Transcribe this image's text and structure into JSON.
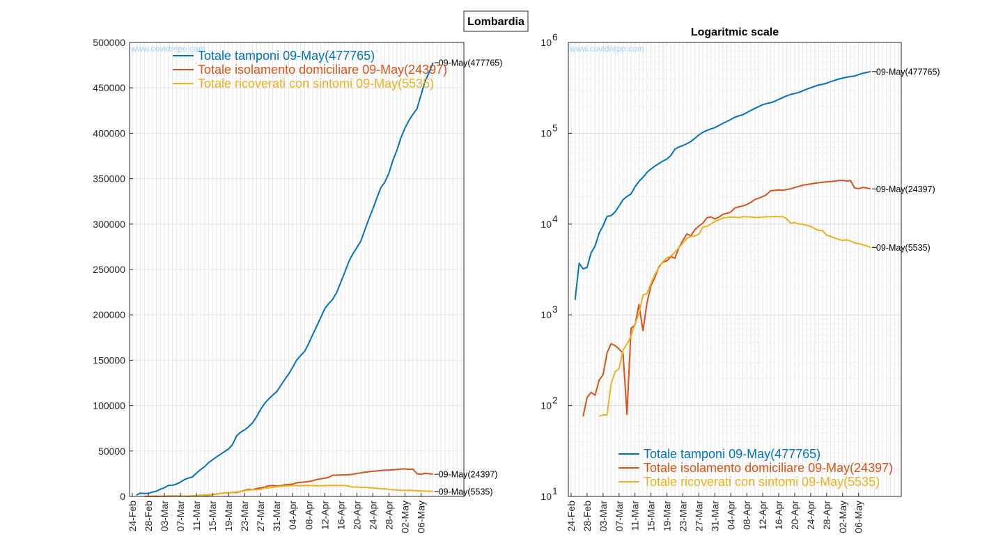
{
  "figure": {
    "region_title": "Lombardia",
    "watermark": "www.covidrepo.com"
  },
  "chart_data": [
    {
      "type": "line",
      "title": "",
      "xlabel": "",
      "ylabel": "",
      "yscale": "linear",
      "ylim": [
        0,
        500000
      ],
      "yticks": [
        0,
        50000,
        100000,
        150000,
        200000,
        250000,
        300000,
        350000,
        400000,
        450000,
        500000
      ],
      "ytick_labels": [
        "0",
        "50000",
        "100000",
        "150000",
        "200000",
        "250000",
        "300000",
        "350000",
        "400000",
        "450000",
        "500000"
      ],
      "grid": true,
      "legend_position": "top",
      "x_start": "24-Feb",
      "x_end": "09-May",
      "xtick_labels": [
        "24-Feb",
        "28-Feb",
        "03-Mar",
        "07-Mar",
        "11-Mar",
        "15-Mar",
        "19-Mar",
        "23-Mar",
        "27-Mar",
        "31-Mar",
        "04-Apr",
        "08-Apr",
        "12-Apr",
        "16-Apr",
        "20-Apr",
        "24-Apr",
        "28-Apr",
        "02-May",
        "06-May"
      ],
      "series": [
        {
          "name": "Totale tamponi 09-May(477765)",
          "color": "#0072BD",
          "end_label": "09-May(477765)",
          "values": [
            1463,
            3700,
            3208,
            3320,
            4835,
            5723,
            7925,
            9577,
            12138,
            12354,
            13556,
            15778,
            18534,
            20135,
            21479,
            25629,
            29534,
            32700,
            37138,
            40369,
            43565,
            46449,
            49354,
            52244,
            57174,
            66730,
            70598,
            73242,
            76695,
            81324,
            87713,
            95860,
            102503,
            107398,
            111477,
            115375,
            121962,
            128601,
            134844,
            142208,
            150138,
            155289,
            160029,
            168590,
            178271,
            187585,
            196988,
            206754,
            212523,
            217163,
            224856,
            235930,
            247181,
            258633,
            267170,
            274036,
            281214,
            293818,
            305638,
            316729,
            328734,
            340152,
            346389,
            356041,
            370268,
            381470,
            395138,
            405697,
            414225,
            420999,
            426993,
            442098,
            457106,
            466802,
            477765
          ]
        },
        {
          "name": "Totale isolamento domiciliare 09-May(24397)",
          "color": "#D95319",
          "end_label": "09-May(24397)",
          "values": [
            76,
            123,
            140,
            130,
            190,
            220,
            380,
            480,
            460,
            420,
            380,
            80,
            710,
            780,
            1300,
            670,
            1350,
            2090,
            2600,
            3400,
            3800,
            3940,
            4380,
            4200,
            5500,
            6600,
            7800,
            7400,
            8700,
            9500,
            10200,
            11700,
            12000,
            11400,
            11900,
            12800,
            13100,
            13600,
            15000,
            15500,
            15800,
            16400,
            17300,
            18600,
            19300,
            20000,
            21200,
            23300,
            23500,
            23700,
            23600,
            24000,
            24400,
            25300,
            25900,
            26800,
            27200,
            27700,
            28100,
            28500,
            28900,
            29100,
            29400,
            29600,
            30200,
            30300,
            29800,
            30100,
            25000,
            24500,
            25300,
            25000,
            24397
          ]
        },
        {
          "name": "Totale ricoverati con sintomi 09-May(5535)",
          "color": "#EDB120",
          "end_label": "09-May(5535)",
          "values": [
            76,
            79,
            79,
            172,
            235,
            256,
            406,
            478,
            583,
            798,
            1034,
            1661,
            1710,
            2217,
            2802,
            3319,
            3852,
            4247,
            4435,
            4898,
            5500,
            6171,
            6953,
            7285,
            7387,
            7735,
            9266,
            9439,
            10026,
            10681,
            11137,
            11613,
            11833,
            11914,
            11915,
            11762,
            12009,
            12038,
            11927,
            11833,
            11815,
            11919,
            12009,
            12061,
            12076,
            12051,
            12077,
            11419,
            10223,
            10401,
            10059,
            9934,
            9687,
            9457,
            8886,
            8519,
            8461,
            7535,
            7329,
            7007,
            6797,
            6576,
            6709,
            6500,
            6192,
            6084,
            5916,
            5747,
            5535
          ]
        }
      ]
    },
    {
      "type": "line",
      "title": "Logaritmic scale",
      "xlabel": "",
      "ylabel": "",
      "yscale": "log",
      "ylim": [
        10,
        1000000
      ],
      "ytick_labels": [
        {
          "base": "10",
          "exp": "1"
        },
        {
          "base": "10",
          "exp": "2"
        },
        {
          "base": "10",
          "exp": "3"
        },
        {
          "base": "10",
          "exp": "4"
        },
        {
          "base": "10",
          "exp": "5"
        },
        {
          "base": "10",
          "exp": "6"
        }
      ],
      "grid": true,
      "legend_position": "bottom",
      "x_start": "24-Feb",
      "x_end": "09-May",
      "xtick_labels": [
        "24-Feb",
        "28-Feb",
        "03-Mar",
        "07-Mar",
        "11-Mar",
        "15-Mar",
        "19-Mar",
        "23-Mar",
        "27-Mar",
        "31-Mar",
        "04-Apr",
        "08-Apr",
        "12-Apr",
        "16-Apr",
        "20-Apr",
        "24-Apr",
        "28-Apr",
        "02-May",
        "06-May"
      ],
      "series": [
        {
          "name": "Totale tamponi 09-May(477765)",
          "color": "#0072BD",
          "end_label": "09-May(477765)",
          "same_as_series_index": 0
        },
        {
          "name": "Totale isolamento domiciliare 09-May(24397)",
          "color": "#D95319",
          "end_label": "09-May(24397)",
          "same_as_series_index": 1
        },
        {
          "name": "Totale ricoverati con sintomi 09-May(5535)",
          "color": "#EDB120",
          "end_label": "09-May(5535)",
          "same_as_series_index": 2
        }
      ]
    }
  ]
}
